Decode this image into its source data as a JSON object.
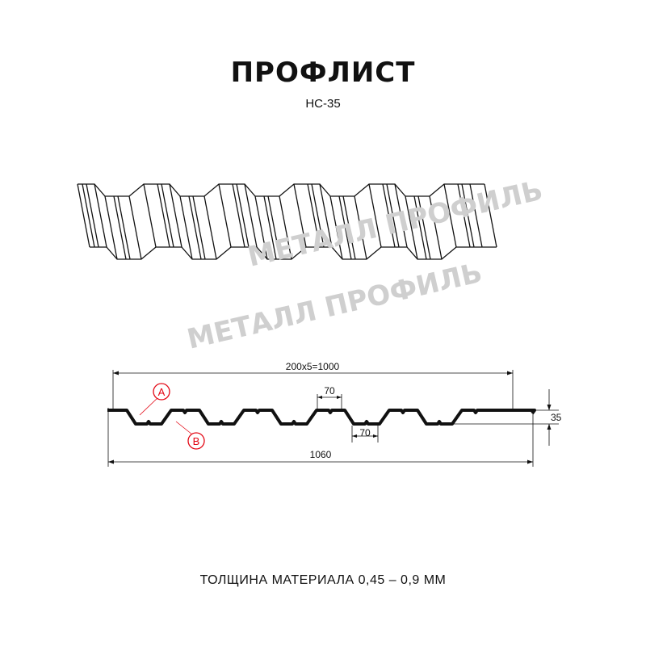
{
  "title": "ПРОФЛИСТ",
  "subtitle": "НС-35",
  "watermark": "МЕТАЛЛ ПРОФИЛЬ",
  "dimensions": {
    "pitch": "200x5=1000",
    "total_width": "1060",
    "top_flat": "70",
    "bottom_flat": "70",
    "height": "35"
  },
  "markers": {
    "a": "A",
    "b": "B"
  },
  "footer": "ТОЛЩИНА МАТЕРИАЛА 0,45 – 0,9 ММ",
  "colors": {
    "line": "#111111",
    "marker": "#e30613",
    "watermark": "#cfcfcf"
  }
}
